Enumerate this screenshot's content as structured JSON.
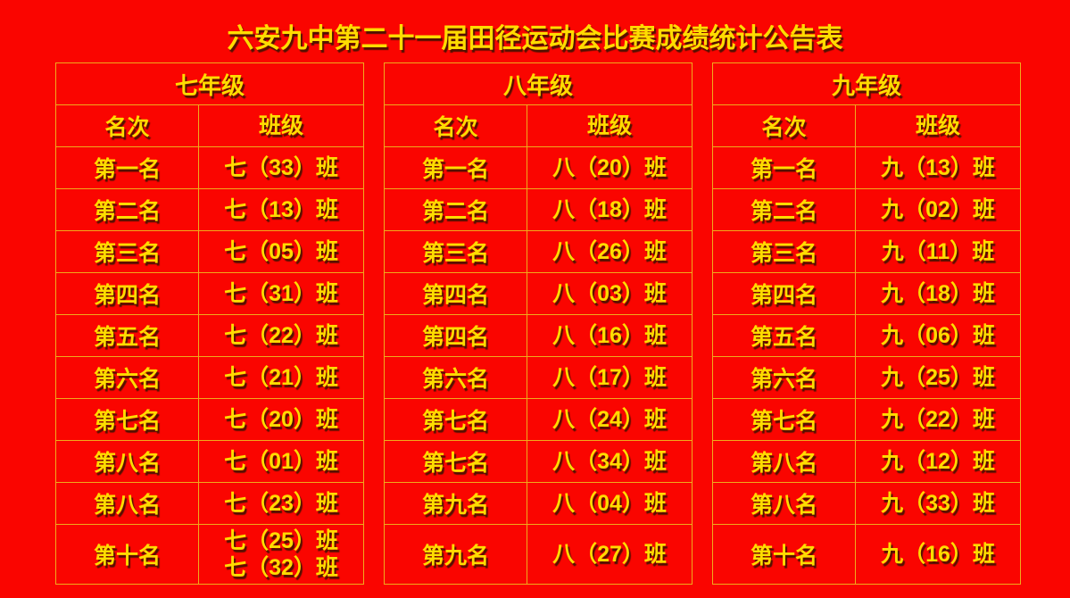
{
  "page": {
    "title": "六安九中第二十一届田径运动会比赛成绩统计公告表",
    "background_color": "#fa0500",
    "text_color": "#ffdc00",
    "grid_line_color": "#f0ab1c",
    "text_shadow_color": "#321400"
  },
  "columns": {
    "rank": "名次",
    "class": "班级"
  },
  "tables": [
    {
      "grade": "七年级",
      "rows": [
        {
          "rank": "第一名",
          "class": [
            "七（33）班"
          ]
        },
        {
          "rank": "第二名",
          "class": [
            "七（13）班"
          ]
        },
        {
          "rank": "第三名",
          "class": [
            "七（05）班"
          ]
        },
        {
          "rank": "第四名",
          "class": [
            "七（31）班"
          ]
        },
        {
          "rank": "第五名",
          "class": [
            "七（22）班"
          ]
        },
        {
          "rank": "第六名",
          "class": [
            "七（21）班"
          ]
        },
        {
          "rank": "第七名",
          "class": [
            "七（20）班"
          ]
        },
        {
          "rank": "第八名",
          "class": [
            "七（01）班"
          ]
        },
        {
          "rank": "第八名",
          "class": [
            "七（23）班"
          ]
        },
        {
          "rank": "第十名",
          "class": [
            "七（25）班",
            "七（32）班"
          ]
        }
      ]
    },
    {
      "grade": "八年级",
      "rows": [
        {
          "rank": "第一名",
          "class": [
            "八（20）班"
          ]
        },
        {
          "rank": "第二名",
          "class": [
            "八（18）班"
          ]
        },
        {
          "rank": "第三名",
          "class": [
            "八（26）班"
          ]
        },
        {
          "rank": "第四名",
          "class": [
            "八（03）班"
          ]
        },
        {
          "rank": "第四名",
          "class": [
            "八（16）班"
          ]
        },
        {
          "rank": "第六名",
          "class": [
            "八（17）班"
          ]
        },
        {
          "rank": "第七名",
          "class": [
            "八（24）班"
          ]
        },
        {
          "rank": "第七名",
          "class": [
            "八（34）班"
          ]
        },
        {
          "rank": "第九名",
          "class": [
            "八（04）班"
          ]
        },
        {
          "rank": "第九名",
          "class": [
            "八（27）班"
          ]
        }
      ]
    },
    {
      "grade": "九年级",
      "rows": [
        {
          "rank": "第一名",
          "class": [
            "九（13）班"
          ]
        },
        {
          "rank": "第二名",
          "class": [
            "九（02）班"
          ]
        },
        {
          "rank": "第三名",
          "class": [
            "九（11）班"
          ]
        },
        {
          "rank": "第四名",
          "class": [
            "九（18）班"
          ]
        },
        {
          "rank": "第五名",
          "class": [
            "九（06）班"
          ]
        },
        {
          "rank": "第六名",
          "class": [
            "九（25）班"
          ]
        },
        {
          "rank": "第七名",
          "class": [
            "九（22）班"
          ]
        },
        {
          "rank": "第八名",
          "class": [
            "九（12）班"
          ]
        },
        {
          "rank": "第八名",
          "class": [
            "九（33）班"
          ]
        },
        {
          "rank": "第十名",
          "class": [
            "九（16）班"
          ]
        }
      ]
    }
  ]
}
